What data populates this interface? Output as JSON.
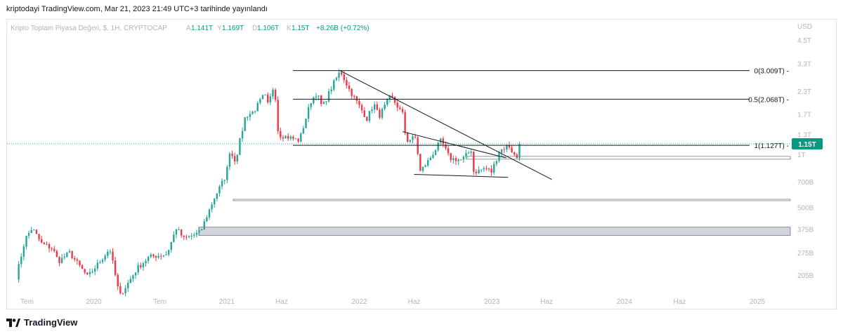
{
  "header": {
    "caption": "kriptodayi TradingView.com, Mar 21, 2023 21:49 UTC+3 tarihinde yayınlandı"
  },
  "legend": {
    "title": "Kripto Toplam Piyasa Değeri, $, 1H, CRYPTOCAP",
    "a_label": "A",
    "a_value": "1.141T",
    "y_label": "Y",
    "y_value": "1.169T",
    "d_label": "D",
    "d_value": "1.106T",
    "k_label": "K",
    "k_value": "1.15T",
    "change": "+8.26B (+0.72%)"
  },
  "colors": {
    "up": "#26a69a",
    "down": "#f23645",
    "text": "#131722",
    "muted": "#b2b5be",
    "zone": "#d1d4dc"
  },
  "footer": {
    "brand": "TradingView",
    "logo_icon": "tradingview-logo-icon"
  },
  "chart_data": {
    "type": "candlestick",
    "title": "Kripto Toplam Piyasa Değeri, $, 1H, CRYPTOCAP",
    "scale": "log",
    "currency_label": "USD",
    "y_ticks": [
      {
        "label": "4.5T",
        "value": 4500000000000.0
      },
      {
        "label": "3.3T",
        "value": 3300000000000.0
      },
      {
        "label": "2.3T",
        "value": 2300000000000.0
      },
      {
        "label": "1.7T",
        "value": 1700000000000.0
      },
      {
        "label": "1.3T",
        "value": 1300000000000.0
      },
      {
        "label": "1T",
        "value": 1000000000000.0
      },
      {
        "label": "700B",
        "value": 700000000000.0
      },
      {
        "label": "500B",
        "value": 500000000000.0
      },
      {
        "label": "375B",
        "value": 375000000000.0
      },
      {
        "label": "275B",
        "value": 275000000000.0
      },
      {
        "label": "205B",
        "value": 205000000000.0
      }
    ],
    "x_ticks": [
      {
        "label": "Tem",
        "date": "2019-07-01"
      },
      {
        "label": "2020",
        "date": "2020-01-01"
      },
      {
        "label": "Tem",
        "date": "2020-07-01"
      },
      {
        "label": "2021",
        "date": "2021-01-01"
      },
      {
        "label": "Haz",
        "date": "2021-06-01"
      },
      {
        "label": "2022",
        "date": "2022-01-01"
      },
      {
        "label": "Haz",
        "date": "2022-06-01"
      },
      {
        "label": "2023",
        "date": "2023-01-01"
      },
      {
        "label": "Haz",
        "date": "2023-06-01"
      },
      {
        "label": "2024",
        "date": "2024-01-01"
      },
      {
        "label": "Haz",
        "date": "2024-06-01"
      },
      {
        "label": "2025",
        "date": "2025-01-01"
      }
    ],
    "last_price": {
      "label": "1.15T",
      "value": 1150000000000.0
    },
    "fib_levels": [
      {
        "label": "0(3.009T)",
        "value": 3009000000000.0
      },
      {
        "label": "0.5(2.068T)",
        "value": 2068000000000.0
      },
      {
        "label": "1(1.127T)",
        "value": 1127000000000.0
      }
    ],
    "zones": [
      {
        "low": 345000000000.0,
        "high": 385000000000.0
      },
      {
        "low": 545000000000.0,
        "high": 555000000000.0
      },
      {
        "low": 940000000000.0,
        "high": 975000000000.0
      }
    ],
    "trendlines": [
      {
        "from": {
          "date": "2021-11-10",
          "value": 3000000000000.0
        },
        "to": {
          "date": "2023-06-15",
          "value": 720000000000.0
        }
      },
      {
        "from": {
          "date": "2022-04-30",
          "value": 1350000000000.0
        },
        "to": {
          "date": "2023-02-10",
          "value": 955000000000.0
        }
      },
      {
        "from": {
          "date": "2022-06-01",
          "value": 770000000000.0
        },
        "to": {
          "date": "2023-02-15",
          "value": 740000000000.0
        }
      }
    ],
    "anchors": [
      [
        "2019-06-01",
        200000000000.0
      ],
      [
        "2019-06-26",
        330000000000.0
      ],
      [
        "2019-07-15",
        380000000000.0
      ],
      [
        "2019-08-10",
        310000000000.0
      ],
      [
        "2019-09-10",
        290000000000.0
      ],
      [
        "2019-09-25",
        245000000000.0
      ],
      [
        "2019-10-26",
        275000000000.0
      ],
      [
        "2019-12-15",
        200000000000.0
      ],
      [
        "2020-02-14",
        290000000000.0
      ],
      [
        "2020-03-12",
        155000000000.0
      ],
      [
        "2020-04-30",
        225000000000.0
      ],
      [
        "2020-06-01",
        260000000000.0
      ],
      [
        "2020-07-20",
        270000000000.0
      ],
      [
        "2020-08-15",
        380000000000.0
      ],
      [
        "2020-09-05",
        330000000000.0
      ],
      [
        "2020-10-20",
        360000000000.0
      ],
      [
        "2020-11-25",
        550000000000.0
      ],
      [
        "2020-12-31",
        770000000000.0
      ],
      [
        "2021-01-08",
        1050000000000.0
      ],
      [
        "2021-01-25",
        920000000000.0
      ],
      [
        "2021-02-21",
        1650000000000.0
      ],
      [
        "2021-03-15",
        1750000000000.0
      ],
      [
        "2021-04-15",
        2200000000000.0
      ],
      [
        "2021-04-25",
        1900000000000.0
      ],
      [
        "2021-05-12",
        2550000000000.0
      ],
      [
        "2021-05-23",
        1300000000000.0
      ],
      [
        "2021-06-22",
        1250000000000.0
      ],
      [
        "2021-07-20",
        1200000000000.0
      ],
      [
        "2021-08-20",
        2000000000000.0
      ],
      [
        "2021-09-06",
        2250000000000.0
      ],
      [
        "2021-09-21",
        1850000000000.0
      ],
      [
        "2021-10-20",
        2500000000000.0
      ],
      [
        "2021-11-10",
        3000000000000.0
      ],
      [
        "2021-12-04",
        2350000000000.0
      ],
      [
        "2022-01-22",
        1600000000000.0
      ],
      [
        "2022-02-10",
        1950000000000.0
      ],
      [
        "2022-02-24",
        1650000000000.0
      ],
      [
        "2022-03-29",
        2150000000000.0
      ],
      [
        "2022-04-30",
        1700000000000.0
      ],
      [
        "2022-05-05",
        1400000000000.0
      ],
      [
        "2022-05-12",
        1200000000000.0
      ],
      [
        "2022-06-05",
        1250000000000.0
      ],
      [
        "2022-06-18",
        800000000000.0
      ],
      [
        "2022-07-10",
        920000000000.0
      ],
      [
        "2022-08-14",
        1200000000000.0
      ],
      [
        "2022-09-07",
        950000000000.0
      ],
      [
        "2022-10-10",
        930000000000.0
      ],
      [
        "2022-11-05",
        1060000000000.0
      ],
      [
        "2022-11-10",
        800000000000.0
      ],
      [
        "2022-11-21",
        800000000000.0
      ],
      [
        "2022-12-15",
        840000000000.0
      ],
      [
        "2022-12-31",
        795000000000.0
      ],
      [
        "2023-01-22",
        1050000000000.0
      ],
      [
        "2023-02-16",
        1130000000000.0
      ],
      [
        "2023-03-10",
        940000000000.0
      ],
      [
        "2023-03-21",
        1150000000000.0
      ]
    ]
  }
}
